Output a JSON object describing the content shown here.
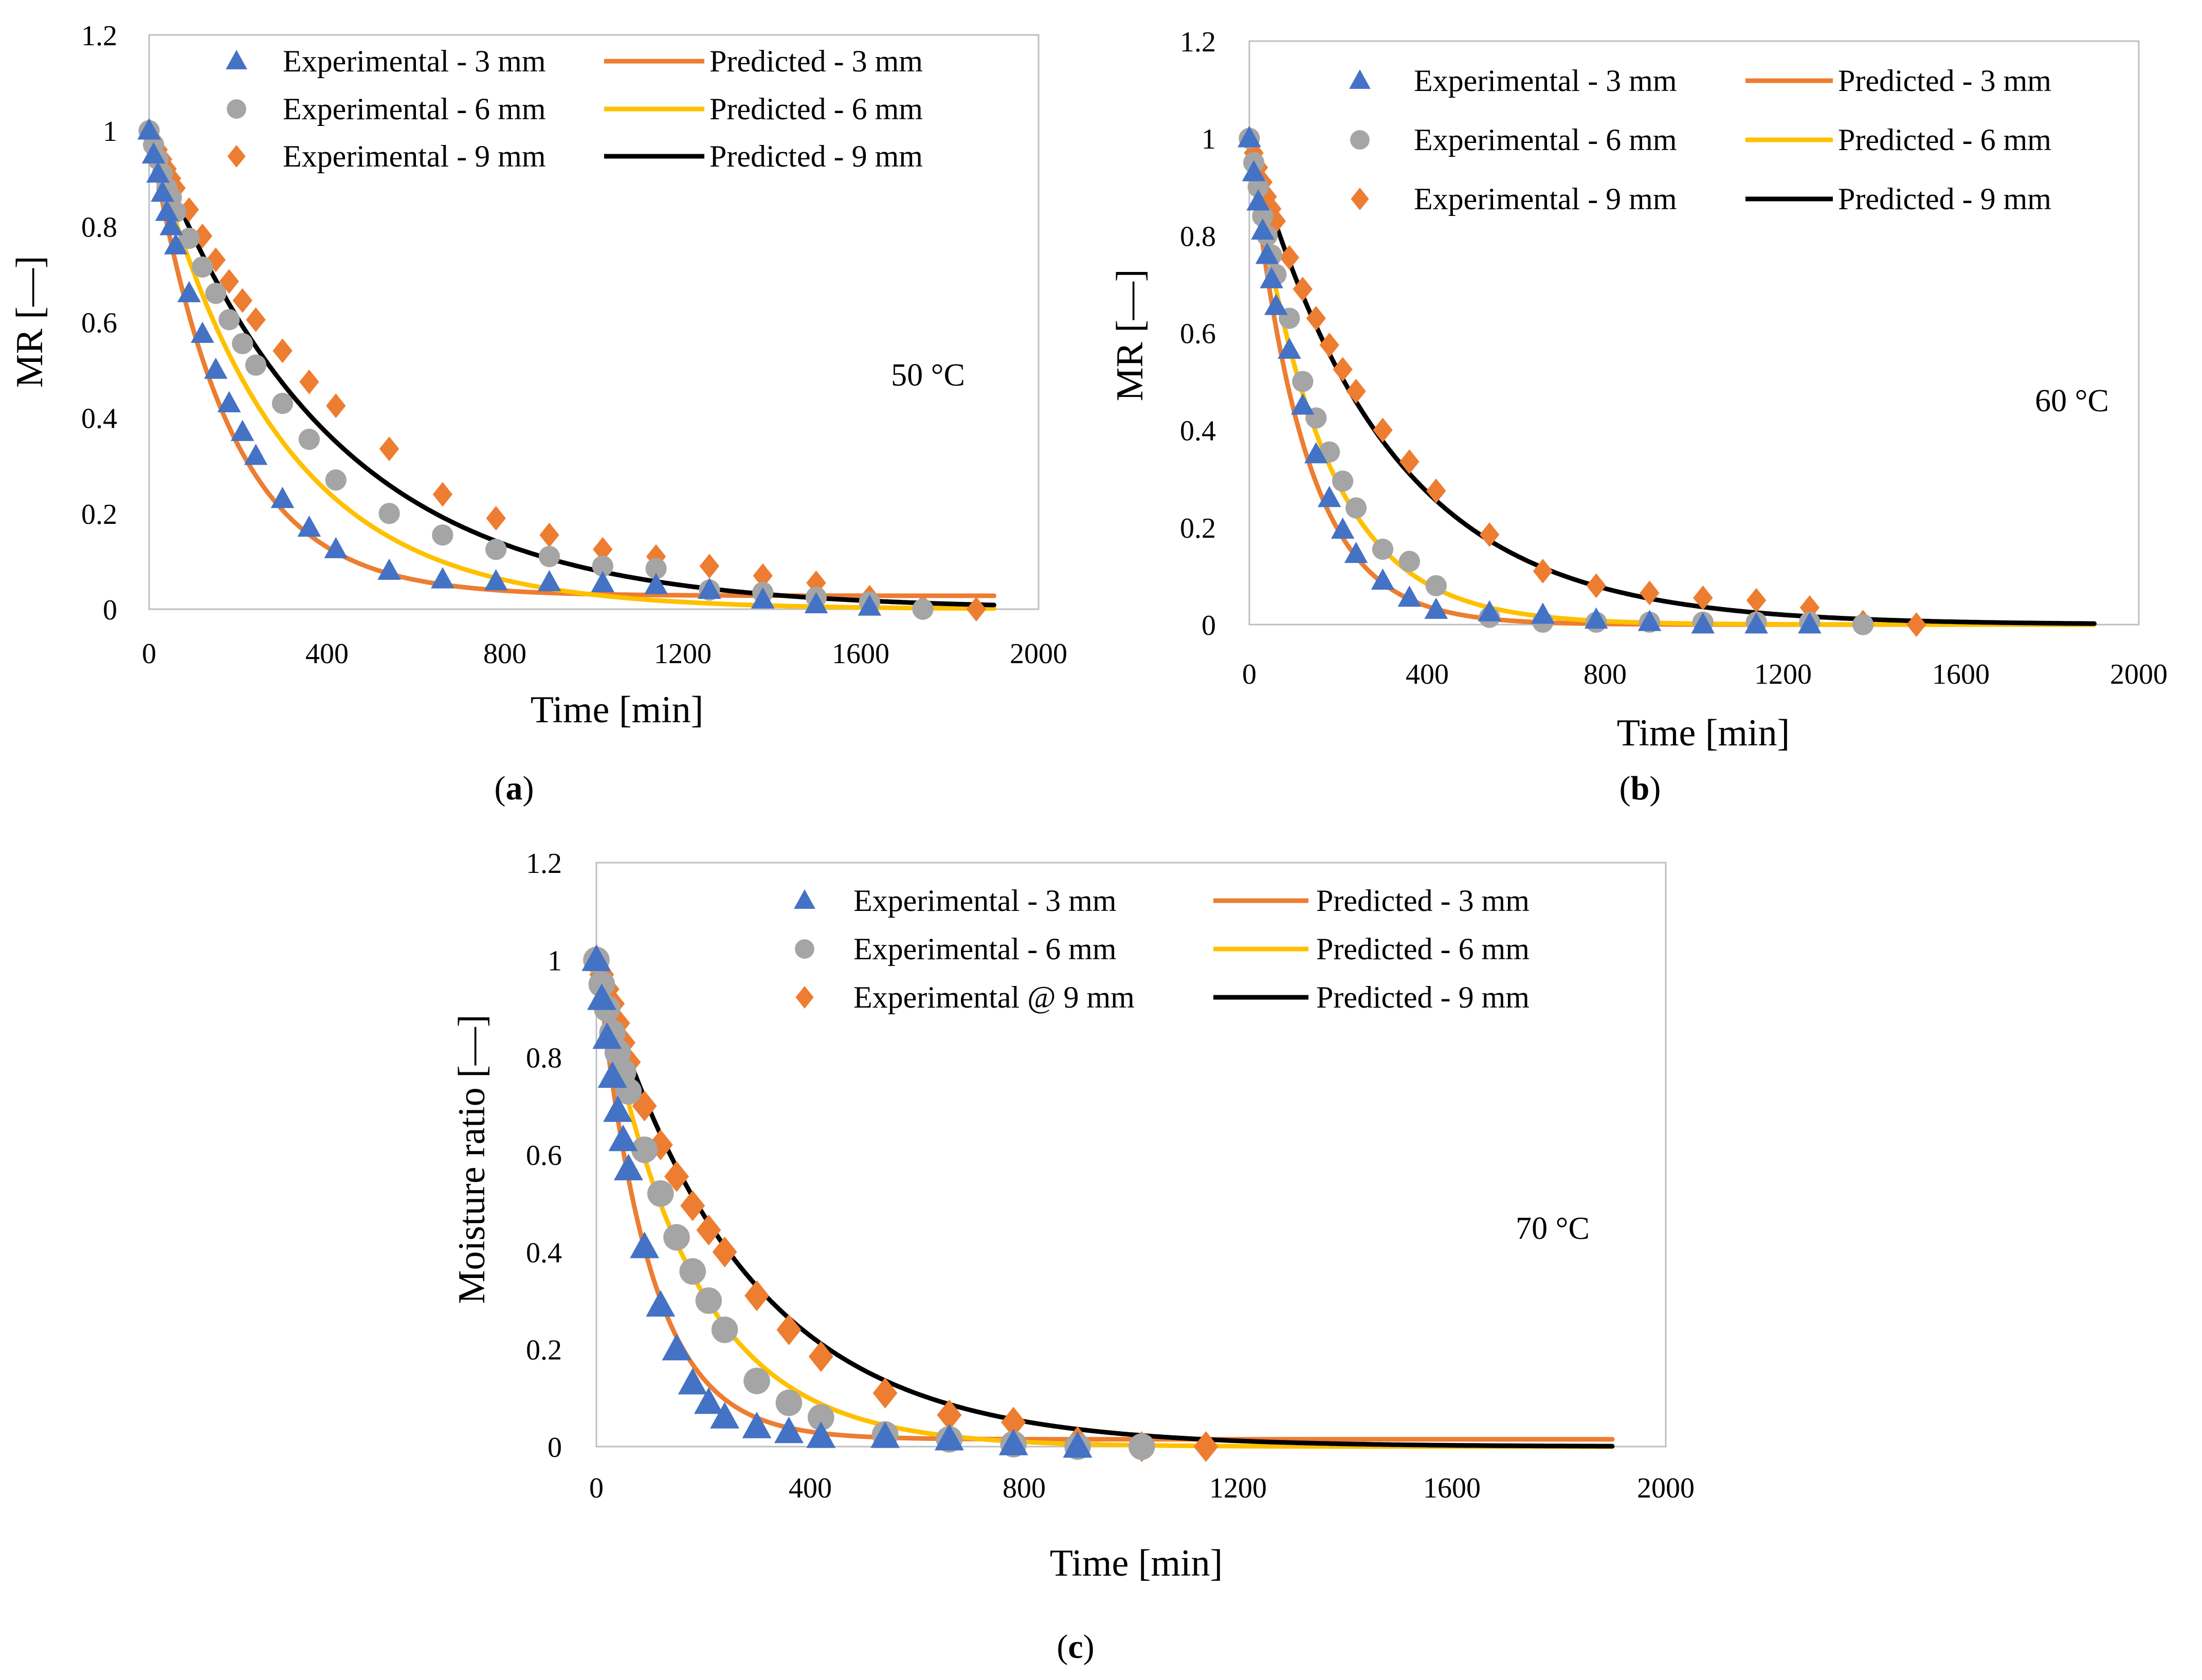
{
  "colors": {
    "exp_3mm": "#4472C4",
    "exp_6mm": "#A5A5A5",
    "exp_9mm": "#ED7D31",
    "pred_3mm": "#ED7D31",
    "pred_6mm": "#FFC000",
    "pred_9mm": "#000000"
  },
  "chart_data": [
    {
      "type": "scatter",
      "caption": {
        "open": "(",
        "letter": "a",
        "close": ")"
      },
      "temperature_label": "50 °C",
      "xlabel": "Time [min]",
      "ylabel": "MR [—]",
      "xlim": [
        0,
        2000
      ],
      "ylim": [
        0,
        1.2
      ],
      "x_ticks": [
        "0",
        "400",
        "800",
        "1200",
        "1600",
        "2000"
      ],
      "y_ticks": [
        "0",
        "0.2",
        "0.4",
        "0.6",
        "0.8",
        "1",
        "1.2"
      ],
      "grid": false,
      "legend": {
        "placement": "top",
        "exp_3mm": "Experimental - 3 mm",
        "exp_6mm": "Experimental - 6 mm",
        "exp_9mm": "Experimental - 9 mm",
        "pred_3mm": "Predicted - 3 mm",
        "pred_6mm": "Predicted - 6 mm",
        "pred_9mm": "Predicted - 9 mm"
      },
      "series": [
        {
          "name": "Experimental - 3 mm",
          "kind": "scatter",
          "marker": "triangle",
          "color_key": "exp_3mm",
          "x": [
            0,
            10,
            20,
            30,
            40,
            50,
            60,
            90,
            120,
            150,
            180,
            210,
            240,
            300,
            360,
            420,
            540,
            660,
            780,
            900,
            1020,
            1140,
            1260,
            1380,
            1500,
            1620
          ],
          "y": [
            1.0,
            0.95,
            0.91,
            0.87,
            0.83,
            0.8,
            0.76,
            0.66,
            0.575,
            0.5,
            0.43,
            0.37,
            0.32,
            0.23,
            0.17,
            0.125,
            0.08,
            0.062,
            0.058,
            0.056,
            0.054,
            0.05,
            0.04,
            0.02,
            0.01,
            0.005
          ]
        },
        {
          "name": "Experimental - 6 mm",
          "kind": "scatter",
          "marker": "circle",
          "color_key": "exp_6mm",
          "x": [
            0,
            10,
            20,
            30,
            40,
            50,
            60,
            90,
            120,
            150,
            180,
            210,
            240,
            300,
            360,
            420,
            540,
            660,
            780,
            900,
            1020,
            1140,
            1260,
            1380,
            1500,
            1620,
            1740
          ],
          "y": [
            1.0,
            0.97,
            0.94,
            0.91,
            0.88,
            0.86,
            0.83,
            0.775,
            0.715,
            0.66,
            0.605,
            0.555,
            0.51,
            0.43,
            0.355,
            0.27,
            0.2,
            0.155,
            0.125,
            0.11,
            0.09,
            0.085,
            0.04,
            0.035,
            0.025,
            0.015,
            0.0
          ]
        },
        {
          "name": "Experimental - 9 mm",
          "kind": "scatter",
          "marker": "diamond",
          "color_key": "exp_9mm",
          "x": [
            0,
            10,
            20,
            30,
            40,
            50,
            60,
            90,
            120,
            150,
            180,
            210,
            240,
            300,
            360,
            420,
            540,
            660,
            780,
            900,
            1020,
            1140,
            1260,
            1380,
            1500,
            1620,
            1740,
            1860
          ],
          "y": [
            1.0,
            0.98,
            0.96,
            0.94,
            0.92,
            0.9,
            0.88,
            0.835,
            0.78,
            0.73,
            0.685,
            0.645,
            0.605,
            0.54,
            0.475,
            0.425,
            0.335,
            0.24,
            0.19,
            0.155,
            0.125,
            0.11,
            0.09,
            0.07,
            0.055,
            0.025,
            0.005,
            0.0
          ]
        },
        {
          "name": "Predicted - 3 mm",
          "kind": "line",
          "color_key": "pred_3mm",
          "model": {
            "a": 0.975,
            "k": 0.00565,
            "c": 0.028
          }
        },
        {
          "name": "Predicted - 6 mm",
          "kind": "line",
          "color_key": "pred_6mm",
          "model": {
            "a": 1.0,
            "k": 0.0035,
            "c": 0.0
          }
        },
        {
          "name": "Predicted - 9 mm",
          "kind": "line",
          "color_key": "pred_9mm",
          "model": {
            "a": 1.0,
            "k": 0.0025,
            "c": 0.0
          }
        }
      ]
    },
    {
      "type": "scatter",
      "caption": {
        "open": "(",
        "letter": "b",
        "close": ")"
      },
      "temperature_label": "60 °C",
      "xlabel": "Time [min]",
      "ylabel": "MR [—]",
      "xlim": [
        0,
        2000
      ],
      "ylim": [
        0,
        1.2
      ],
      "x_ticks": [
        "0",
        "400",
        "800",
        "1200",
        "1600",
        "2000"
      ],
      "y_ticks": [
        "0",
        "0.2",
        "0.4",
        "0.6",
        "0.8",
        "1",
        "1.2"
      ],
      "grid": false,
      "legend": {
        "placement": "top-right",
        "exp_3mm": "Experimental - 3 mm",
        "exp_6mm": "Experimental - 6 mm",
        "exp_9mm": "Experimental - 9 mm",
        "pred_3mm": "Predicted - 3 mm",
        "pred_6mm": "Predicted - 6 mm",
        "pred_9mm": "Predicted - 9 mm"
      },
      "series": [
        {
          "name": "Experimental - 3 mm",
          "kind": "scatter",
          "marker": "triangle",
          "color_key": "exp_3mm",
          "x": [
            0,
            10,
            20,
            30,
            40,
            50,
            60,
            90,
            120,
            150,
            180,
            210,
            240,
            300,
            360,
            420,
            540,
            660,
            780,
            900,
            1020,
            1140,
            1260
          ],
          "y": [
            1.0,
            0.93,
            0.87,
            0.81,
            0.76,
            0.71,
            0.655,
            0.565,
            0.45,
            0.35,
            0.26,
            0.195,
            0.145,
            0.09,
            0.055,
            0.03,
            0.025,
            0.02,
            0.01,
            0.005,
            0.0,
            0.0,
            0.0
          ]
        },
        {
          "name": "Experimental - 6 mm",
          "kind": "scatter",
          "marker": "circle",
          "color_key": "exp_6mm",
          "x": [
            0,
            10,
            20,
            30,
            40,
            50,
            60,
            90,
            120,
            150,
            180,
            210,
            240,
            300,
            360,
            420,
            540,
            660,
            780,
            900,
            1020,
            1140,
            1260,
            1380
          ],
          "y": [
            1.0,
            0.95,
            0.9,
            0.84,
            0.8,
            0.76,
            0.72,
            0.63,
            0.5,
            0.425,
            0.355,
            0.295,
            0.24,
            0.155,
            0.13,
            0.08,
            0.015,
            0.005,
            0.005,
            0.005,
            0.005,
            0.005,
            0.005,
            0.0
          ]
        },
        {
          "name": "Experimental - 9 mm",
          "kind": "scatter",
          "marker": "diamond",
          "color_key": "exp_9mm",
          "x": [
            0,
            10,
            20,
            30,
            40,
            50,
            60,
            90,
            120,
            150,
            180,
            210,
            240,
            300,
            360,
            420,
            540,
            660,
            780,
            900,
            1020,
            1140,
            1260,
            1380,
            1500
          ],
          "y": [
            1.0,
            0.97,
            0.94,
            0.91,
            0.88,
            0.855,
            0.83,
            0.755,
            0.69,
            0.63,
            0.575,
            0.525,
            0.48,
            0.4,
            0.335,
            0.275,
            0.185,
            0.11,
            0.08,
            0.065,
            0.055,
            0.05,
            0.035,
            0.005,
            0.0
          ]
        },
        {
          "name": "Predicted - 3 mm",
          "kind": "line",
          "color_key": "pred_3mm",
          "model": {
            "a": 1.0,
            "k": 0.0082,
            "c": 0.0
          }
        },
        {
          "name": "Predicted - 6 mm",
          "kind": "line",
          "color_key": "pred_6mm",
          "model": {
            "a": 1.0,
            "k": 0.0062,
            "c": 0.0
          }
        },
        {
          "name": "Predicted - 9 mm",
          "kind": "line",
          "color_key": "pred_9mm",
          "model": {
            "a": 1.0,
            "k": 0.00325,
            "c": 0.0
          }
        }
      ]
    },
    {
      "type": "scatter",
      "caption": {
        "open": "(",
        "letter": "c",
        "close": ")"
      },
      "temperature_label": "70 °C",
      "xlabel": "Time [min]",
      "ylabel": "Moisture ratio [—]",
      "xlim": [
        0,
        2000
      ],
      "ylim": [
        0,
        1.2
      ],
      "x_ticks": [
        "0",
        "400",
        "800",
        "1200",
        "1600",
        "2000"
      ],
      "y_ticks": [
        "0",
        "0.2",
        "0.4",
        "0.6",
        "0.8",
        "1",
        "1.2"
      ],
      "grid": false,
      "legend": {
        "placement": "top-right",
        "exp_3mm": "Experimental - 3 mm",
        "exp_6mm": "Experimental - 6 mm",
        "exp_9mm": "Experimental @ 9 mm",
        "pred_3mm": "Predicted - 3 mm",
        "pred_6mm": "Predicted - 6 mm",
        "pred_9mm": "Predicted - 9 mm"
      },
      "series": [
        {
          "name": "Experimental - 3 mm",
          "kind": "scatter",
          "marker": "triangle",
          "color_key": "exp_3mm",
          "x": [
            0,
            10,
            20,
            30,
            40,
            50,
            60,
            90,
            120,
            150,
            180,
            210,
            240,
            300,
            360,
            420,
            540,
            660,
            780,
            900
          ],
          "y": [
            1.0,
            0.92,
            0.84,
            0.76,
            0.69,
            0.63,
            0.57,
            0.41,
            0.29,
            0.2,
            0.13,
            0.09,
            0.06,
            0.04,
            0.03,
            0.02,
            0.02,
            0.015,
            0.005,
            0.0
          ]
        },
        {
          "name": "Experimental - 6 mm",
          "kind": "scatter",
          "marker": "circle",
          "color_key": "exp_6mm",
          "x": [
            0,
            10,
            20,
            30,
            40,
            50,
            60,
            90,
            120,
            150,
            180,
            210,
            240,
            300,
            360,
            420,
            540,
            660,
            780,
            900,
            1020
          ],
          "y": [
            1.0,
            0.95,
            0.9,
            0.85,
            0.81,
            0.77,
            0.73,
            0.61,
            0.52,
            0.43,
            0.36,
            0.3,
            0.24,
            0.135,
            0.09,
            0.06,
            0.025,
            0.015,
            0.005,
            0.0,
            0.0
          ]
        },
        {
          "name": "Experimental @ 9 mm",
          "kind": "scatter",
          "marker": "diamond",
          "color_key": "exp_9mm",
          "x": [
            0,
            10,
            20,
            30,
            40,
            50,
            60,
            90,
            120,
            150,
            180,
            210,
            240,
            300,
            360,
            420,
            540,
            660,
            780,
            900,
            1020,
            1140
          ],
          "y": [
            1.0,
            0.97,
            0.94,
            0.91,
            0.87,
            0.83,
            0.79,
            0.7,
            0.62,
            0.555,
            0.495,
            0.445,
            0.4,
            0.31,
            0.24,
            0.185,
            0.11,
            0.065,
            0.05,
            0.01,
            0.0,
            0.0
          ]
        },
        {
          "name": "Predicted - 3 mm",
          "kind": "line",
          "color_key": "pred_3mm",
          "model": {
            "a": 1.0,
            "k": 0.0104,
            "c": 0.015
          }
        },
        {
          "name": "Predicted - 6 mm",
          "kind": "line",
          "color_key": "pred_6mm",
          "model": {
            "a": 1.0,
            "k": 0.0058,
            "c": 0.0
          }
        },
        {
          "name": "Predicted - 9 mm",
          "kind": "line",
          "color_key": "pred_9mm",
          "model": {
            "a": 1.0,
            "k": 0.0037,
            "c": 0.0
          }
        }
      ]
    }
  ]
}
